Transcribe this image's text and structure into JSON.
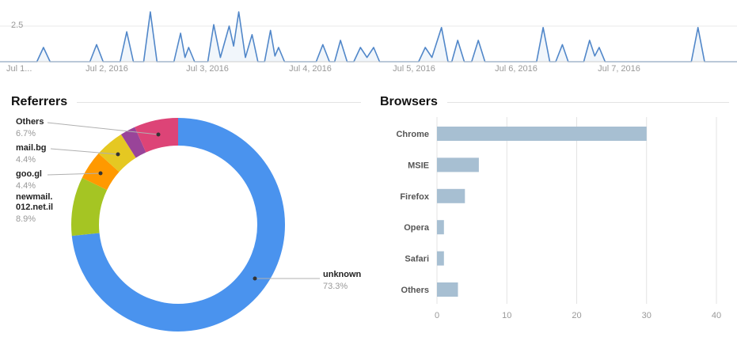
{
  "chart_data": [
    {
      "type": "line",
      "name": "visits-over-time",
      "y_tick_label": "2.5",
      "ylim": [
        0,
        3.5
      ],
      "x_tick_labels": [
        "Jul 1...",
        "Jul 2, 2016",
        "Jul 3, 2016",
        "Jul 4, 2016",
        "Jul 5, 2016",
        "Jul 6, 2016",
        "Jul 7, 2016"
      ],
      "line_color": "#5187c9",
      "fill_color": "rgba(81,135,201,0.08)",
      "grid": true,
      "points": [
        [
          0,
          0
        ],
        [
          0.05,
          0
        ],
        [
          0.059,
          1
        ],
        [
          0.068,
          0
        ],
        [
          0.122,
          0
        ],
        [
          0.131,
          1.2
        ],
        [
          0.14,
          0
        ],
        [
          0.163,
          0
        ],
        [
          0.172,
          2.1
        ],
        [
          0.181,
          0
        ],
        [
          0.195,
          0
        ],
        [
          0.204,
          3.5
        ],
        [
          0.213,
          0
        ],
        [
          0.236,
          0
        ],
        [
          0.245,
          2
        ],
        [
          0.251,
          0.3
        ],
        [
          0.256,
          1
        ],
        [
          0.264,
          0
        ],
        [
          0.282,
          0
        ],
        [
          0.29,
          2.6
        ],
        [
          0.299,
          0.3
        ],
        [
          0.311,
          2.5
        ],
        [
          0.317,
          1.1
        ],
        [
          0.324,
          3.5
        ],
        [
          0.333,
          0.3
        ],
        [
          0.342,
          1.9
        ],
        [
          0.35,
          0
        ],
        [
          0.359,
          0
        ],
        [
          0.367,
          2.2
        ],
        [
          0.373,
          0.4
        ],
        [
          0.378,
          1
        ],
        [
          0.386,
          0
        ],
        [
          0.429,
          0
        ],
        [
          0.438,
          1.2
        ],
        [
          0.447,
          0
        ],
        [
          0.454,
          0
        ],
        [
          0.462,
          1.5
        ],
        [
          0.471,
          0
        ],
        [
          0.48,
          0
        ],
        [
          0.489,
          1
        ],
        [
          0.498,
          0.3
        ],
        [
          0.507,
          1
        ],
        [
          0.515,
          0
        ],
        [
          0.568,
          0
        ],
        [
          0.577,
          1
        ],
        [
          0.586,
          0.3
        ],
        [
          0.599,
          2.4
        ],
        [
          0.608,
          0
        ],
        [
          0.613,
          0
        ],
        [
          0.621,
          1.5
        ],
        [
          0.63,
          0
        ],
        [
          0.64,
          0
        ],
        [
          0.649,
          1.5
        ],
        [
          0.658,
          0
        ],
        [
          0.728,
          0
        ],
        [
          0.737,
          2.4
        ],
        [
          0.746,
          0
        ],
        [
          0.754,
          0
        ],
        [
          0.763,
          1.2
        ],
        [
          0.771,
          0
        ],
        [
          0.792,
          0
        ],
        [
          0.8,
          1.5
        ],
        [
          0.807,
          0.4
        ],
        [
          0.813,
          1
        ],
        [
          0.821,
          0
        ],
        [
          0.938,
          0
        ],
        [
          0.947,
          2.4
        ],
        [
          0.956,
          0
        ],
        [
          1,
          0
        ]
      ]
    },
    {
      "type": "donut",
      "title": "Referrers",
      "slices": [
        {
          "label": "unknown",
          "pct_label": "73.3%",
          "value": 73.3,
          "color": "#4a93ee"
        },
        {
          "label": "newmail.012.net.il",
          "label_lines": [
            "newmail.",
            "012.net.il"
          ],
          "pct_label": "8.9%",
          "value": 8.9,
          "color": "#a5c523"
        },
        {
          "label": "goo.gl",
          "pct_label": "4.4%",
          "value": 4.4,
          "color": "#ff9900"
        },
        {
          "label": "mail.bg",
          "pct_label": "4.4%",
          "value": 4.4,
          "color": "#e5c822"
        },
        {
          "label": "",
          "pct_label": "",
          "value": 2.3,
          "color": "#994499"
        },
        {
          "label": "Others",
          "pct_label": "6.7%",
          "value": 6.7,
          "color": "#dd4477"
        }
      ]
    },
    {
      "type": "bar",
      "title": "Browsers",
      "orientation": "horizontal",
      "categories": [
        "Chrome",
        "MSIE",
        "Firefox",
        "Opera",
        "Safari",
        "Others"
      ],
      "values": [
        30,
        6,
        4,
        1,
        1,
        3
      ],
      "x_ticks": [
        "0",
        "10",
        "20",
        "30",
        "40"
      ],
      "xlim": [
        0,
        40
      ],
      "bar_color": "#a7bfd2",
      "grid": true
    }
  ]
}
